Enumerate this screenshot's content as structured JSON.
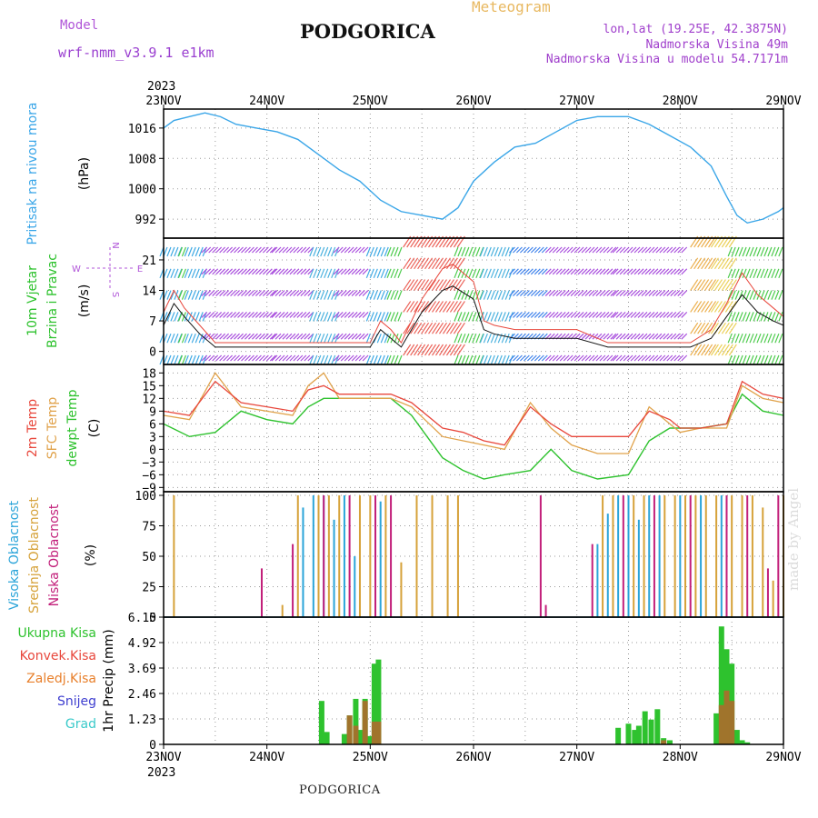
{
  "header": {
    "model_label": "Model",
    "model_name": "wrf-nmm_v3.9.1  e1km",
    "station": "PODGORICA",
    "meteogram": "Meteogram",
    "lonlat": "lon,lat (19.25E, 42.3875N)",
    "elevation": "Nadmorska Visina 49m",
    "model_elevation": "Nadmorska Visina u modelu 54.7171m"
  },
  "footer": {
    "station": "PODGORICA"
  },
  "watermark": "made by Angel",
  "colors": {
    "pressure": "#3aa6e8",
    "temp2m": "#e8473c",
    "sfc_temp": "#e0a24a",
    "dewpt": "#2ec22e",
    "high_cloud": "#2ba4d9",
    "mid_cloud": "#d6a23a",
    "low_cloud": "#c21f7a",
    "total_precip": "#2ec22e",
    "convective": "#e8473c",
    "frozen": "#e8802c",
    "snow": "#4040d0",
    "graupel": "#3acaca",
    "wind_label": "#2ec22e",
    "wind_dir": "#b055d8"
  },
  "chart_data": [
    {
      "type": "line",
      "name": "pressure",
      "ylabel": [
        "Pritisak na nivou mora"
      ],
      "units": "(hPa)",
      "x_ticks": [
        "23NOV",
        "24NOV",
        "25NOV",
        "26NOV",
        "27NOV",
        "28NOV",
        "29NOV"
      ],
      "year": "2023",
      "yticks": [
        992,
        1000,
        1008,
        1016
      ],
      "ylim": [
        987,
        1021
      ],
      "series": [
        {
          "name": "Pritisak na nivou mora",
          "x": [
            0,
            0.1,
            0.25,
            0.4,
            0.55,
            0.7,
            0.9,
            1.1,
            1.3,
            1.5,
            1.7,
            1.9,
            2.1,
            2.3,
            2.5,
            2.7,
            2.85,
            3.0,
            3.2,
            3.4,
            3.6,
            3.8,
            4.0,
            4.2,
            4.4,
            4.5,
            4.6,
            4.7,
            4.9,
            5.1,
            5.3,
            5.45,
            5.55,
            5.65,
            5.8,
            5.95,
            6.0
          ],
          "values": [
            1016,
            1018,
            1019,
            1020,
            1019,
            1017,
            1016,
            1015,
            1013,
            1009,
            1005,
            1002,
            997,
            994,
            993,
            992,
            995,
            1002,
            1007,
            1011,
            1012,
            1015,
            1018,
            1019,
            1019,
            1019,
            1018,
            1017,
            1014,
            1011,
            1006,
            998,
            993,
            991,
            992,
            994,
            995
          ]
        }
      ]
    },
    {
      "type": "line",
      "name": "wind",
      "ylabel": [
        "10m Vjetar",
        "Brzina i Pravac"
      ],
      "units": "(m/s)",
      "dir_legend": {
        "n": "N",
        "e": "E",
        "w": "W",
        "s": "S"
      },
      "yticks": [
        0,
        7,
        14,
        21
      ],
      "ylim": [
        -3,
        26
      ],
      "series": [
        {
          "name": "speed",
          "x": [
            0,
            0.1,
            0.2,
            0.35,
            0.5,
            0.8,
            1.0,
            1.3,
            1.6,
            1.8,
            2.0,
            2.1,
            2.2,
            2.3,
            2.5,
            2.7,
            2.8,
            3.0,
            3.1,
            3.2,
            3.4,
            3.6,
            3.8,
            4.0,
            4.3,
            4.6,
            4.9,
            5.1,
            5.3,
            5.45,
            5.6,
            5.75,
            5.9,
            6.0
          ],
          "values": [
            6,
            11,
            8,
            4,
            1,
            1,
            1,
            1,
            1,
            1,
            1,
            5,
            3,
            1,
            9,
            14,
            15,
            12,
            5,
            4,
            3,
            3,
            3,
            3,
            1,
            1,
            1,
            1,
            3,
            8,
            13,
            9,
            7,
            6
          ]
        },
        {
          "name": "gust",
          "x": [
            0,
            0.1,
            0.2,
            0.35,
            0.5,
            0.8,
            1.0,
            1.3,
            1.6,
            1.8,
            2.0,
            2.1,
            2.2,
            2.3,
            2.5,
            2.7,
            2.8,
            3.0,
            3.1,
            3.2,
            3.4,
            3.6,
            3.8,
            4.0,
            4.3,
            4.6,
            4.9,
            5.1,
            5.3,
            5.45,
            5.6,
            5.75,
            5.9,
            6.0
          ],
          "values": [
            9,
            14,
            10,
            6,
            2,
            2,
            2,
            2,
            2,
            2,
            2,
            7,
            5,
            2,
            12,
            19,
            20,
            16,
            7,
            6,
            5,
            5,
            5,
            5,
            2,
            2,
            2,
            2,
            5,
            11,
            18,
            13,
            10,
            8
          ]
        }
      ]
    },
    {
      "type": "line",
      "name": "temperature",
      "ylabel": [
        "2m Temp",
        "SFC Temp",
        "dewpt Temp"
      ],
      "units": "(C)",
      "yticks": [
        -9,
        -6,
        -3,
        0,
        3,
        6,
        9,
        12,
        15,
        18
      ],
      "ylim": [
        -10,
        20
      ],
      "series": [
        {
          "name": "2m Temp",
          "x": [
            0,
            0.25,
            0.5,
            0.75,
            1.0,
            1.25,
            1.4,
            1.55,
            1.7,
            2.0,
            2.2,
            2.4,
            2.7,
            2.9,
            3.1,
            3.3,
            3.55,
            3.75,
            3.95,
            4.2,
            4.5,
            4.7,
            4.9,
            5.0,
            5.2,
            5.45,
            5.6,
            5.8,
            6.0
          ],
          "values": [
            9,
            8,
            16,
            11,
            10,
            9,
            14,
            15,
            13,
            13,
            13,
            11,
            5,
            4,
            2,
            1,
            10,
            6,
            3,
            3,
            3,
            9,
            7,
            5,
            5,
            6,
            16,
            13,
            12
          ]
        },
        {
          "name": "SFC Temp",
          "x": [
            0,
            0.25,
            0.5,
            0.75,
            1.0,
            1.25,
            1.4,
            1.55,
            1.7,
            2.0,
            2.2,
            2.4,
            2.7,
            2.9,
            3.1,
            3.3,
            3.55,
            3.75,
            3.95,
            4.2,
            4.5,
            4.7,
            4.9,
            5.0,
            5.2,
            5.45,
            5.6,
            5.8,
            6.0
          ],
          "values": [
            8,
            7,
            18,
            10,
            9,
            8,
            15,
            18,
            12,
            12,
            12,
            10,
            3,
            2,
            1,
            0,
            11,
            5,
            1,
            -1,
            -1,
            10,
            6,
            4,
            5,
            5,
            15,
            12,
            11
          ]
        },
        {
          "name": "dewpt Temp",
          "x": [
            0,
            0.25,
            0.5,
            0.75,
            1.0,
            1.25,
            1.4,
            1.55,
            1.7,
            2.0,
            2.2,
            2.4,
            2.7,
            2.9,
            3.1,
            3.3,
            3.55,
            3.75,
            3.95,
            4.2,
            4.5,
            4.7,
            4.9,
            5.0,
            5.2,
            5.45,
            5.6,
            5.8,
            6.0
          ],
          "values": [
            6,
            3,
            4,
            9,
            7,
            6,
            10,
            12,
            12,
            12,
            12,
            8,
            -2,
            -5,
            -7,
            -6,
            -5,
            0,
            -5,
            -7,
            -6,
            2,
            5,
            5,
            5,
            6,
            13,
            9,
            8
          ]
        }
      ]
    },
    {
      "type": "bar",
      "name": "clouds",
      "ylabel": [
        "Visoka Oblacnost",
        "Srednja Oblacnost",
        "Niska Oblacnost"
      ],
      "units": "(%)",
      "yticks": [
        0,
        25,
        50,
        75,
        100
      ],
      "ylim": [
        0,
        103
      ],
      "series": [
        {
          "name": "Visoka Oblacnost",
          "x": [
            1.35,
            1.45,
            1.55,
            1.65,
            1.75,
            1.85,
            2.1,
            4.2,
            4.3,
            4.4,
            4.5,
            4.6,
            4.7,
            4.8,
            5.0,
            5.2,
            5.4
          ],
          "values": [
            90,
            100,
            100,
            80,
            100,
            50,
            95,
            60,
            85,
            100,
            100,
            80,
            100,
            100,
            100,
            100,
            100
          ]
        },
        {
          "name": "Srednja Oblacnost",
          "x": [
            0.1,
            1.15,
            1.3,
            1.5,
            1.6,
            1.7,
            1.9,
            2.0,
            2.15,
            2.3,
            2.45,
            2.6,
            2.75,
            2.85,
            4.25,
            4.35,
            4.55,
            4.65,
            4.85,
            4.95,
            5.05,
            5.15,
            5.25,
            5.35,
            5.5,
            5.6,
            5.7,
            5.8,
            5.9,
            6.0
          ],
          "values": [
            100,
            10,
            100,
            100,
            100,
            100,
            100,
            100,
            100,
            45,
            100,
            100,
            100,
            100,
            100,
            100,
            100,
            100,
            100,
            100,
            100,
            100,
            100,
            100,
            100,
            100,
            100,
            90,
            30,
            100
          ]
        },
        {
          "name": "Niska Oblacnost",
          "x": [
            0.95,
            1.25,
            1.55,
            1.8,
            2.05,
            2.2,
            3.65,
            3.7,
            4.15,
            4.45,
            4.75,
            5.1,
            5.45,
            5.65,
            5.85,
            5.95
          ],
          "values": [
            40,
            60,
            100,
            100,
            100,
            100,
            100,
            10,
            60,
            100,
            100,
            100,
            100,
            100,
            40,
            100
          ]
        }
      ]
    },
    {
      "type": "bar",
      "name": "precipitation",
      "legend": [
        "Ukupna Kisa",
        "Konvek.Kisa",
        "Zaledj.Kisa",
        "Snijeg",
        "Grad"
      ],
      "ylabel": [
        "1hr Precip (mm)"
      ],
      "yticks": [
        0,
        1.23,
        2.46,
        3.69,
        4.92,
        6.15
      ],
      "ylim": [
        0,
        6.15
      ],
      "series": [
        {
          "name": "Ukupna Kisa",
          "x": [
            1.53,
            1.58,
            1.75,
            1.8,
            1.86,
            1.9,
            1.95,
            2.0,
            2.04,
            2.08,
            4.4,
            4.5,
            4.56,
            4.6,
            4.66,
            4.72,
            4.78,
            4.84,
            4.9,
            5.35,
            5.4,
            5.45,
            5.5,
            5.55,
            5.6,
            5.65
          ],
          "values": [
            2.1,
            0.6,
            0.5,
            1.4,
            2.2,
            0.7,
            2.2,
            0.4,
            3.9,
            4.1,
            0.8,
            1.0,
            0.7,
            0.9,
            1.6,
            1.2,
            1.7,
            0.3,
            0.2,
            1.5,
            5.7,
            4.6,
            3.9,
            0.7,
            0.2,
            0.1
          ]
        },
        {
          "name": "Konvek.Kisa",
          "x": [
            1.8,
            1.86,
            1.95,
            2.04,
            2.08,
            4.84,
            5.4,
            5.45,
            5.5
          ],
          "values": [
            1.4,
            0.9,
            2.1,
            1.1,
            1.1,
            0.2,
            1.9,
            2.6,
            2.1
          ]
        }
      ]
    }
  ]
}
